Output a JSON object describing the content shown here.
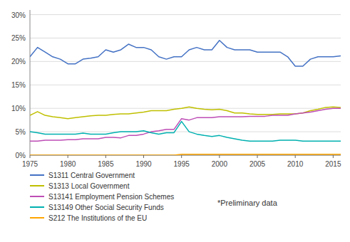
{
  "chart_data": {
    "type": "line",
    "x": [
      1975,
      1976,
      1977,
      1978,
      1979,
      1980,
      1981,
      1982,
      1983,
      1984,
      1985,
      1986,
      1987,
      1988,
      1989,
      1990,
      1991,
      1992,
      1993,
      1994,
      1995,
      1996,
      1997,
      1998,
      1999,
      2000,
      2001,
      2002,
      2003,
      2004,
      2005,
      2006,
      2007,
      2008,
      2009,
      2010,
      2011,
      2012,
      2013,
      2014,
      2015,
      2016
    ],
    "series": [
      {
        "name": "S1311 Central Government",
        "color": "#4472c4",
        "values": [
          21.0,
          23.0,
          22.0,
          21.0,
          20.5,
          19.5,
          19.5,
          20.5,
          20.7,
          21.0,
          22.5,
          22.0,
          22.5,
          23.7,
          23.0,
          23.0,
          22.5,
          21.0,
          20.5,
          21.0,
          21.0,
          22.5,
          23.0,
          22.5,
          22.5,
          24.5,
          23.0,
          22.5,
          22.5,
          22.5,
          22.0,
          22.0,
          22.0,
          22.0,
          21.0,
          19.0,
          19.0,
          20.5,
          21.0,
          21.0,
          21.0,
          21.2
        ]
      },
      {
        "name": "S1313 Local Government",
        "color": "#bfbf00",
        "values": [
          8.5,
          9.3,
          8.5,
          8.2,
          8.0,
          7.8,
          8.0,
          8.2,
          8.4,
          8.5,
          8.5,
          8.7,
          8.8,
          8.8,
          9.0,
          9.2,
          9.5,
          9.5,
          9.5,
          9.8,
          10.0,
          10.3,
          10.0,
          9.8,
          9.7,
          9.8,
          9.5,
          9.0,
          9.0,
          8.8,
          8.7,
          8.7,
          8.7,
          8.8,
          8.8,
          8.8,
          9.0,
          9.5,
          9.8,
          10.2,
          10.3,
          10.2
        ]
      },
      {
        "name": "S13141 Employment Pension Schemes",
        "color": "#be4db5",
        "values": [
          3.0,
          3.0,
          3.2,
          3.2,
          3.2,
          3.3,
          3.3,
          3.5,
          3.5,
          3.5,
          3.8,
          3.8,
          3.7,
          4.2,
          4.2,
          4.5,
          5.0,
          5.2,
          5.5,
          5.5,
          7.8,
          7.5,
          8.0,
          8.0,
          8.0,
          8.2,
          8.2,
          8.2,
          8.2,
          8.3,
          8.3,
          8.3,
          8.5,
          8.5,
          8.5,
          8.8,
          9.0,
          9.2,
          9.5,
          9.8,
          10.0,
          10.0
        ]
      },
      {
        "name": "S13149 Other Social Security Funds",
        "color": "#00b0b0",
        "values": [
          5.0,
          4.8,
          4.5,
          4.5,
          4.5,
          4.5,
          4.5,
          4.7,
          4.5,
          4.5,
          4.5,
          4.8,
          5.0,
          5.0,
          5.0,
          5.2,
          4.8,
          4.5,
          4.8,
          4.8,
          7.2,
          5.0,
          4.5,
          4.2,
          4.0,
          4.2,
          3.8,
          3.5,
          3.2,
          3.0,
          3.0,
          3.0,
          3.0,
          3.2,
          3.2,
          3.2,
          3.0,
          3.0,
          3.0,
          3.0,
          3.0,
          3.0
        ]
      },
      {
        "name": "S212 The Institutions of the EU",
        "color": "#ffa500",
        "values": [
          0.0,
          0.0,
          0.0,
          0.0,
          0.0,
          0.0,
          0.0,
          0.0,
          0.0,
          0.0,
          0.0,
          0.0,
          0.0,
          0.0,
          0.0,
          0.0,
          0.0,
          0.0,
          0.0,
          0.0,
          0.2,
          0.2,
          0.2,
          0.2,
          0.2,
          0.2,
          0.2,
          0.2,
          0.2,
          0.2,
          0.2,
          0.2,
          0.2,
          0.2,
          0.2,
          0.2,
          0.2,
          0.2,
          0.2,
          0.2,
          0.2,
          0.2
        ]
      }
    ],
    "xlim": [
      1975,
      2016
    ],
    "ylim": [
      0,
      31
    ],
    "xticks": [
      1975,
      1980,
      1985,
      1990,
      1995,
      2000,
      2005,
      2010,
      2015
    ],
    "yticks": [
      {
        "value": 0,
        "label": "0%"
      },
      {
        "value": 5,
        "label": "5%"
      },
      {
        "value": 10,
        "label": "10%"
      },
      {
        "value": 15,
        "label": "15%"
      },
      {
        "value": 20,
        "label": "20%"
      },
      {
        "value": 25,
        "label": "25%"
      },
      {
        "value": 30,
        "label": "30%"
      }
    ],
    "grid": true,
    "legend": "bottom",
    "annotations": [
      "*Preliminary data"
    ]
  }
}
